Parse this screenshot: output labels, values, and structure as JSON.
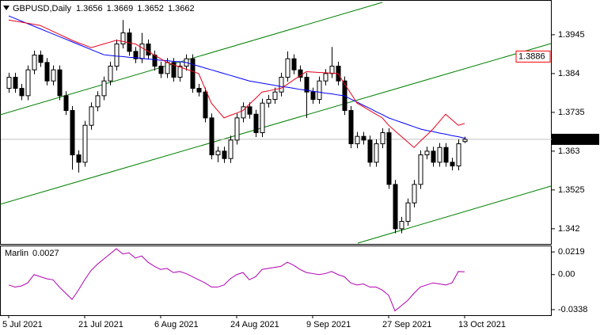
{
  "chart_data": [
    {
      "type": "candlestick",
      "title": "GBPUSD,Daily",
      "categories": [
        "5 Jul 2021",
        null,
        null,
        null,
        null,
        null,
        null,
        null,
        null,
        null,
        null,
        null,
        "21 Jul 2021",
        null,
        null,
        null,
        null,
        null,
        null,
        null,
        null,
        null,
        null,
        null,
        "6 Aug 2021",
        null,
        null,
        null,
        null,
        null,
        null,
        null,
        null,
        null,
        null,
        null,
        "24 Aug 2021",
        null,
        null,
        null,
        null,
        null,
        null,
        null,
        null,
        null,
        null,
        null,
        "9 Sep 2021",
        null,
        null,
        null,
        null,
        null,
        null,
        null,
        null,
        null,
        null,
        null,
        "27 Sep 2021",
        null,
        null,
        null,
        null,
        null,
        null,
        null,
        null,
        null,
        null,
        null,
        "13 Oct 2021"
      ],
      "open": [
        1.38,
        1.383,
        1.38,
        1.378,
        1.385,
        1.389,
        1.387,
        1.382,
        1.385,
        1.378,
        1.374,
        1.362,
        1.36,
        1.37,
        1.375,
        1.378,
        1.382,
        1.386,
        1.392,
        1.395,
        1.39,
        1.388,
        1.392,
        1.389,
        1.386,
        1.384,
        1.387,
        1.383,
        1.386,
        1.388,
        1.38,
        1.379,
        1.372,
        1.362,
        1.363,
        1.361,
        1.366,
        1.372,
        1.375,
        1.373,
        1.368,
        1.376,
        1.377,
        1.379,
        1.383,
        1.388,
        1.385,
        1.383,
        1.379,
        1.377,
        1.382,
        1.384,
        1.386,
        1.382,
        1.374,
        1.365,
        1.367,
        1.366,
        1.36,
        1.365,
        1.368,
        1.354,
        1.342,
        1.344,
        1.349,
        1.354,
        1.362,
        1.363,
        1.36,
        1.364,
        1.36,
        1.359,
        1.3656
      ],
      "high": [
        1.3842,
        1.3842,
        1.3812,
        1.3862,
        1.3902,
        1.3902,
        1.3882,
        1.3862,
        1.3862,
        1.3792,
        1.3752,
        1.3632,
        1.3712,
        1.3762,
        1.3792,
        1.3832,
        1.3872,
        1.3932,
        1.3985,
        1.3962,
        1.3912,
        1.395,
        1.3932,
        1.3902,
        1.3872,
        1.3882,
        1.3882,
        1.3872,
        1.3892,
        1.3892,
        1.3812,
        1.3802,
        1.3732,
        1.3642,
        1.3642,
        1.3672,
        1.3732,
        1.3762,
        1.3762,
        1.3742,
        1.3772,
        1.3782,
        1.3802,
        1.3842,
        1.39,
        1.3892,
        1.3862,
        1.3842,
        1.3802,
        1.3832,
        1.3852,
        1.3912,
        1.3872,
        1.3832,
        1.3752,
        1.3682,
        1.3682,
        1.3672,
        1.3662,
        1.3692,
        1.3692,
        1.3552,
        1.3452,
        1.3502,
        1.3552,
        1.3632,
        1.3642,
        1.3642,
        1.3652,
        1.3652,
        1.3612,
        1.3662,
        1.3669
      ],
      "low": [
        1.3788,
        1.3788,
        1.3768,
        1.3768,
        1.3838,
        1.3858,
        1.3808,
        1.3808,
        1.3768,
        1.3728,
        1.358,
        1.3572,
        1.3588,
        1.3688,
        1.3738,
        1.3768,
        1.3808,
        1.3848,
        1.3908,
        1.3888,
        1.3868,
        1.3868,
        1.3878,
        1.3848,
        1.3828,
        1.3828,
        1.3818,
        1.3818,
        1.3848,
        1.3788,
        1.3778,
        1.3708,
        1.3608,
        1.36,
        1.3598,
        1.3598,
        1.3648,
        1.3708,
        1.3718,
        1.3668,
        1.3668,
        1.3748,
        1.3758,
        1.3778,
        1.3818,
        1.3838,
        1.3818,
        1.372,
        1.3758,
        1.3758,
        1.3808,
        1.3828,
        1.3808,
        1.3728,
        1.3638,
        1.3638,
        1.3648,
        1.3588,
        1.3588,
        1.3638,
        1.3528,
        1.3408,
        1.3408,
        1.3428,
        1.3478,
        1.3528,
        1.3608,
        1.3588,
        1.3588,
        1.3588,
        1.3578,
        1.3578,
        1.3652
      ],
      "close": [
        1.383,
        1.38,
        1.378,
        1.385,
        1.389,
        1.387,
        1.382,
        1.385,
        1.378,
        1.374,
        1.362,
        1.36,
        1.37,
        1.375,
        1.378,
        1.382,
        1.386,
        1.392,
        1.395,
        1.39,
        1.388,
        1.392,
        1.389,
        1.386,
        1.384,
        1.387,
        1.383,
        1.386,
        1.388,
        1.38,
        1.379,
        1.372,
        1.362,
        1.363,
        1.361,
        1.366,
        1.372,
        1.375,
        1.373,
        1.368,
        1.376,
        1.377,
        1.379,
        1.383,
        1.388,
        1.385,
        1.383,
        1.379,
        1.377,
        1.382,
        1.384,
        1.386,
        1.382,
        1.374,
        1.365,
        1.367,
        1.366,
        1.36,
        1.365,
        1.368,
        1.354,
        1.342,
        1.344,
        1.349,
        1.354,
        1.362,
        1.363,
        1.36,
        1.364,
        1.36,
        1.359,
        1.365,
        1.3662
      ],
      "up_color": "#ffffff",
      "down_color": "#000000",
      "series": [
        {
          "color": "#0000ff",
          "values": [
            1.3996,
            1.3989,
            1.3982,
            1.3975,
            1.3968,
            1.3961,
            1.3954,
            1.3947,
            1.394,
            1.3933,
            1.3926,
            1.3919,
            1.3912,
            1.3905,
            1.3898,
            1.3891,
            1.3889,
            1.3887,
            1.3886,
            1.3884,
            1.3883,
            1.3881,
            1.3879,
            1.3878,
            1.3876,
            1.3875,
            1.3873,
            1.3872,
            1.387,
            1.3865,
            1.386,
            1.3855,
            1.385,
            1.3845,
            1.384,
            1.3835,
            1.383,
            1.3825,
            1.382,
            1.3817,
            1.3814,
            1.3811,
            1.3808,
            1.3805,
            1.3803,
            1.38,
            1.3797,
            1.3795,
            1.3792,
            1.379,
            1.3787,
            1.3785,
            1.3782,
            1.378,
            1.3771,
            1.3763,
            1.3754,
            1.3746,
            1.3737,
            1.3729,
            1.372,
            1.3714,
            1.3708,
            1.3702,
            1.3696,
            1.369,
            1.3686,
            1.3683,
            1.3679,
            1.3676,
            1.3672,
            1.3669,
            1.3665
          ]
        },
        {
          "color": "#e8001c",
          "values": [
            1.3985,
            1.3982,
            1.3979,
            1.3976,
            1.3973,
            1.397,
            1.3962,
            1.3954,
            1.3946,
            1.3938,
            1.393,
            1.3923,
            1.3917,
            1.391,
            1.3915,
            1.392,
            1.3925,
            1.393,
            1.3927,
            1.3923,
            1.392,
            1.391,
            1.39,
            1.389,
            1.388,
            1.387,
            1.3864,
            1.3858,
            1.3852,
            1.3846,
            1.384,
            1.38,
            1.376,
            1.374,
            1.372,
            1.3727,
            1.3733,
            1.374,
            1.3757,
            1.3773,
            1.379,
            1.3793,
            1.3797,
            1.38,
            1.3811,
            1.3823,
            1.3834,
            1.3845,
            1.3844,
            1.3843,
            1.3842,
            1.3841,
            1.384,
            1.3813,
            1.3787,
            1.376,
            1.375,
            1.374,
            1.373,
            1.372,
            1.37,
            1.3685,
            1.367,
            1.3655,
            1.364,
            1.3657,
            1.3673,
            1.369,
            1.371,
            1.373,
            1.3715,
            1.37,
            1.3705
          ]
        }
      ],
      "ylim": [
        1.3379,
        1.4039
      ],
      "yticks": [
        1.3945,
        1.384,
        1.3735,
        1.363,
        1.3525,
        1.342
      ],
      "level": 1.3886,
      "level_color": "#ff0000"
    },
    {
      "type": "line",
      "title": "Marlin",
      "series": [
        {
          "color": "#b000b0",
          "values": [
            -0.01,
            -0.012,
            -0.011,
            -0.008,
            0.0,
            -0.002,
            -0.004,
            -0.005,
            -0.012,
            -0.018,
            -0.024,
            -0.015,
            -0.005,
            0.004,
            0.01,
            0.015,
            0.02,
            0.025,
            0.02,
            0.021,
            0.016,
            0.018,
            0.012,
            0.008,
            0.005,
            0.006,
            0.002,
            0.003,
            0.001,
            -0.002,
            -0.005,
            -0.008,
            -0.012,
            -0.012,
            -0.01,
            -0.004,
            0.0,
            0.002,
            -0.005,
            -0.002,
            0.005,
            0.006,
            0.007,
            0.008,
            0.012,
            0.009,
            0.005,
            0.002,
            0.001,
            0.0,
            0.001,
            0.003,
            0.0,
            -0.002,
            -0.008,
            -0.01,
            -0.009,
            -0.012,
            -0.012,
            -0.015,
            -0.02,
            -0.035,
            -0.03,
            -0.025,
            -0.018,
            -0.012,
            -0.01,
            -0.008,
            -0.009,
            -0.01,
            -0.008,
            0.003,
            0.0027
          ]
        }
      ],
      "ylim": [
        -0.0392,
        0.0281
      ],
      "yticks": [
        0.0219,
        {
          "value": 0,
          "label": "0.00"
        },
        -0.0338
      ]
    }
  ]
}
